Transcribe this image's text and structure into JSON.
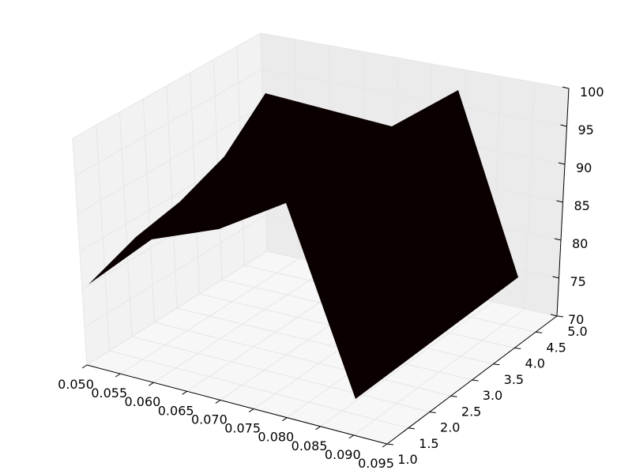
{
  "chart_data": {
    "type": "surface3d",
    "title": "",
    "xlabel": "",
    "ylabel": "",
    "zlabel": "",
    "x_ticks": [
      "0.050",
      "0.055",
      "0.060",
      "0.065",
      "0.070",
      "0.075",
      "0.080",
      "0.085",
      "0.090",
      "0.095"
    ],
    "y_ticks": [
      "1.0",
      "1.5",
      "2.0",
      "2.5",
      "3.0",
      "3.5",
      "4.0",
      "4.5",
      "5.0"
    ],
    "z_ticks": [
      "70",
      "75",
      "80",
      "85",
      "90",
      "95",
      "100"
    ],
    "xlim": [
      0.05,
      0.095
    ],
    "ylim": [
      1.0,
      5.0
    ],
    "zlim": [
      70,
      100
    ],
    "surface_color": "#0b0000",
    "pane_color": "#f2f2f2",
    "grid_color": "#e6e6e6",
    "grid": true,
    "front_edge": [
      {
        "x": 0.05,
        "y": 1.0,
        "z": 82
      },
      {
        "x": 0.055,
        "y": 1.0,
        "z": 86
      },
      {
        "x": 0.065,
        "y": 1.0,
        "z": 88
      },
      {
        "x": 0.075,
        "y": 1.0,
        "z": 92
      },
      {
        "x": 0.09,
        "y": 1.0,
        "z": 71
      },
      {
        "x": 0.095,
        "y": 1.0,
        "z": 76
      }
    ],
    "back_edge": [
      {
        "x": 0.05,
        "y": 5.0,
        "z": 81
      },
      {
        "x": 0.055,
        "y": 5.0,
        "z": 86
      },
      {
        "x": 0.06,
        "y": 5.0,
        "z": 88
      },
      {
        "x": 0.065,
        "y": 5.0,
        "z": 92
      },
      {
        "x": 0.07,
        "y": 5.0,
        "z": 99
      },
      {
        "x": 0.085,
        "y": 5.0,
        "z": 98
      },
      {
        "x": 0.09,
        "y": 5.0,
        "z": 100
      },
      {
        "x": 0.095,
        "y": 5.0,
        "z": 76
      }
    ]
  }
}
